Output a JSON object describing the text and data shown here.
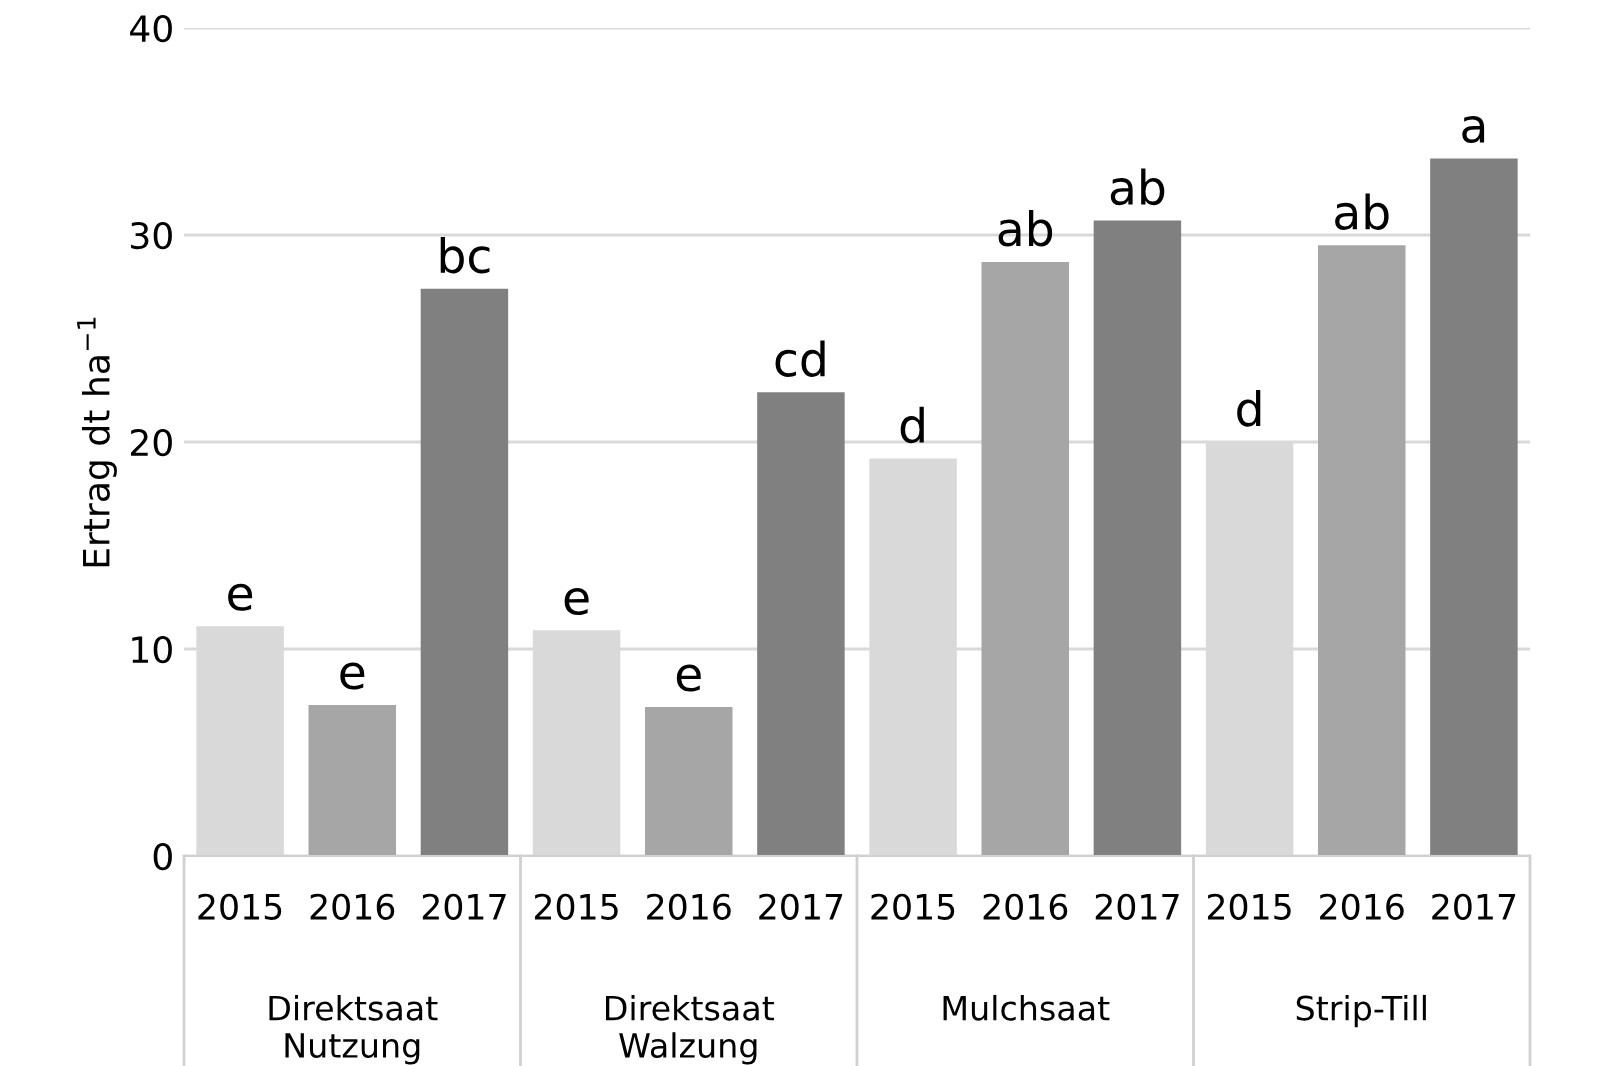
{
  "chart_data": {
    "type": "bar",
    "ylabel": "Ertrag dt ha$^{−1}$",
    "categories": [
      "Direktsaat\nNutzung",
      "Direktsaat\nWalzung",
      "Mulchsaat",
      "Strip-Till"
    ],
    "series": [
      {
        "name": "2015",
        "color": "#d9d9d9",
        "values": [
          11.1,
          10.9,
          19.2,
          20.0
        ],
        "value_labels": [
          "e",
          "e",
          "d",
          "d"
        ]
      },
      {
        "name": "2016",
        "color": "#a6a6a6",
        "values": [
          7.3,
          7.2,
          28.7,
          29.5
        ],
        "value_labels": [
          "e",
          "e",
          "ab",
          "ab"
        ]
      },
      {
        "name": "2017",
        "color": "#808080",
        "values": [
          27.4,
          22.4,
          30.7,
          33.7
        ],
        "value_labels": [
          "bc",
          "cd",
          "ab",
          "a"
        ]
      }
    ],
    "ylim": [
      0,
      40
    ],
    "yticks": [
      0,
      10,
      20,
      30,
      40
    ],
    "grid": "y",
    "legend": false
  }
}
